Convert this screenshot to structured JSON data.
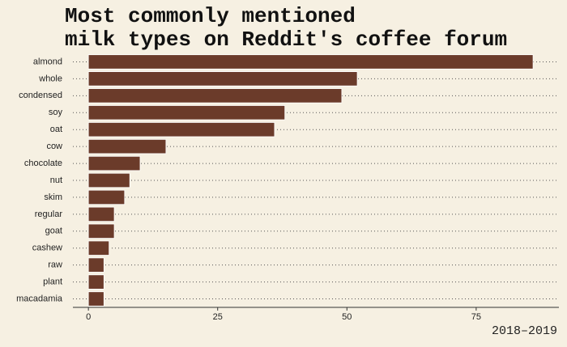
{
  "chart_data": {
    "type": "bar",
    "orientation": "horizontal",
    "title": [
      "Most commonly mentioned",
      "milk types on Reddit's coffee forum"
    ],
    "caption": "2018–2019",
    "categories": [
      "almond",
      "whole",
      "condensed",
      "soy",
      "oat",
      "cow",
      "chocolate",
      "nut",
      "skim",
      "regular",
      "goat",
      "cashew",
      "raw",
      "plant",
      "macadamia"
    ],
    "values": [
      86,
      52,
      49,
      38,
      36,
      15,
      10,
      8,
      7,
      5,
      5,
      4,
      3,
      3,
      3
    ],
    "color": "#6b3b2a",
    "xlim": [
      -3,
      91
    ],
    "xticks": [
      0,
      25,
      50,
      75
    ],
    "grid": true
  }
}
